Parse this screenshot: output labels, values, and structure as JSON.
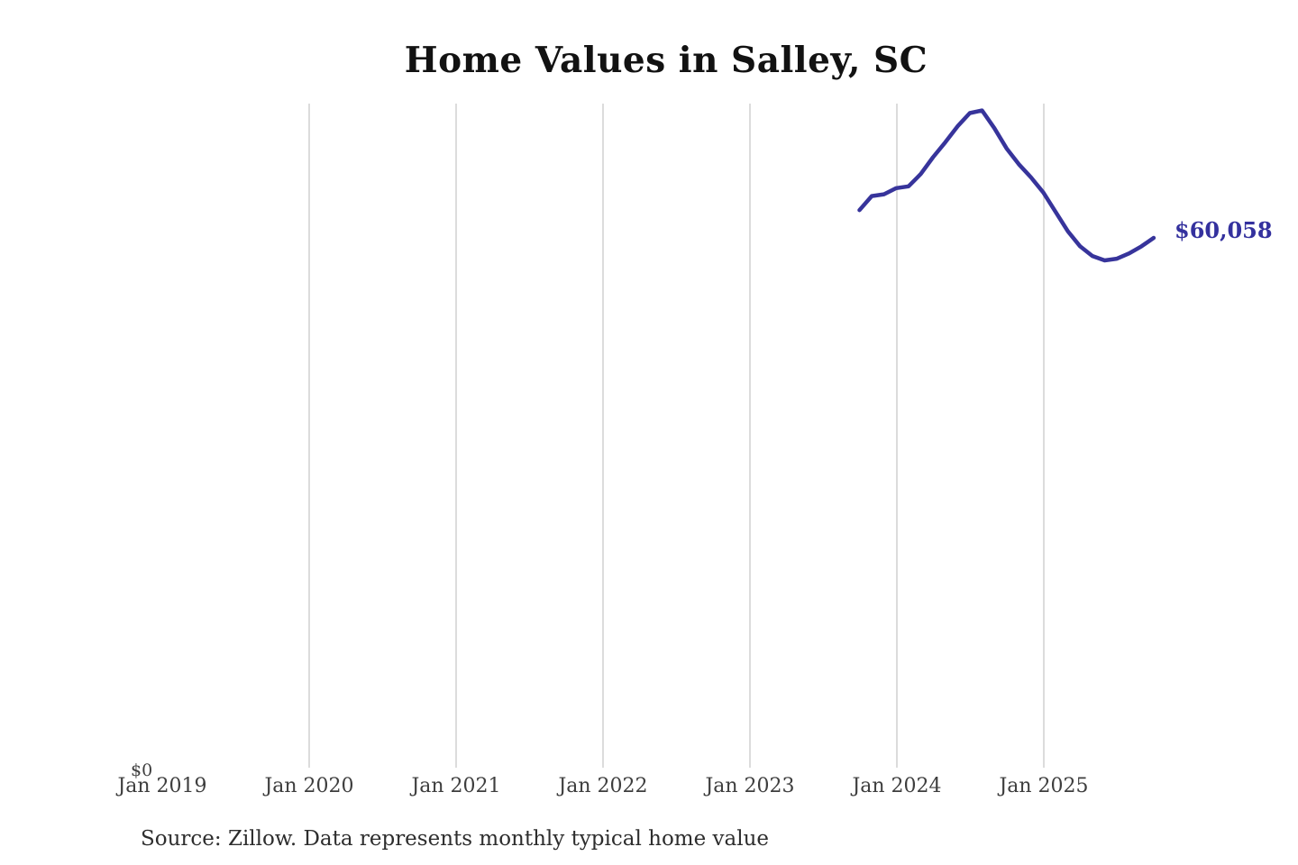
{
  "title": "Home Values in Salley, SC",
  "end_label": "$60,058",
  "y_zero_label": "$0",
  "source_note": "Source: Zillow. Data represents monthly typical home value",
  "colors": {
    "line": "#37349b",
    "end_label_text": "#34319e",
    "grid": "#c9c9c9",
    "axis_text": "#3e3e3e",
    "title_text": "#121212",
    "source_text": "#2d2d2d",
    "background": "#ffffff"
  },
  "chart_data": {
    "type": "line",
    "title": "Home Values in Salley, SC",
    "series_name": "Monthly typical home value",
    "x": [
      "Oct 2023",
      "Nov 2023",
      "Dec 2023",
      "Jan 2024",
      "Feb 2024",
      "Mar 2024",
      "Apr 2024",
      "May 2024",
      "Jun 2024",
      "Jul 2024",
      "Aug 2024",
      "Sep 2024",
      "Oct 2024",
      "Nov 2024",
      "Dec 2024",
      "Jan 2025",
      "Feb 2025",
      "Mar 2025",
      "Apr 2025",
      "May 2025",
      "Jun 2025",
      "Jul 2025",
      "Aug 2025",
      "Sep 2025",
      "Oct 2025"
    ],
    "values": [
      63200,
      64800,
      65000,
      65700,
      65900,
      67300,
      69200,
      70900,
      72700,
      74200,
      74500,
      72500,
      70200,
      68400,
      66900,
      65200,
      63000,
      60800,
      59100,
      58000,
      57500,
      57700,
      58300,
      59100,
      60058
    ],
    "last_value": 60058,
    "last_value_label": "$60,058",
    "x_tick_labels": [
      "Jan 2019",
      "Jan 2020",
      "Jan 2021",
      "Jan 2022",
      "Jan 2023",
      "Jan 2024",
      "Jan 2025"
    ],
    "y_tick_labels": [
      "$0"
    ],
    "xlabel": "",
    "ylabel": "",
    "ylim": [
      0,
      78000
    ],
    "grid": "vertical-only",
    "legend": "none",
    "annotation": "Source: Zillow. Data represents monthly typical home value"
  }
}
